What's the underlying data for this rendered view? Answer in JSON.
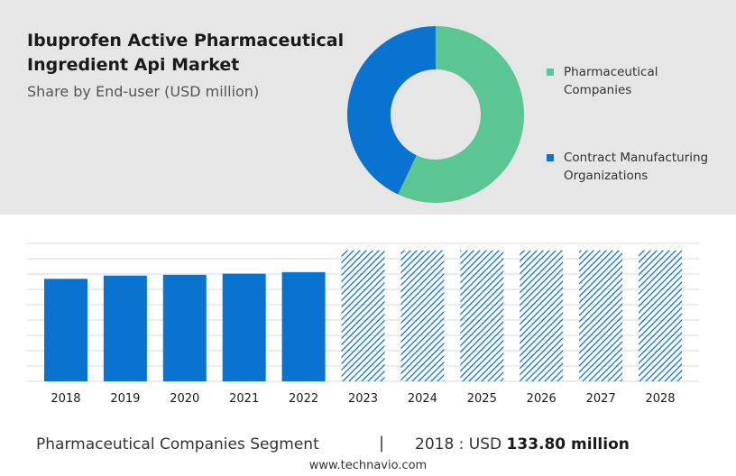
{
  "header": {
    "title": "Ibuprofen Active Pharmaceutical Ingredient Api Market",
    "subtitle": "Share by End-user (USD million)"
  },
  "chart_data": [
    {
      "type": "pie",
      "variant": "donut",
      "segments": [
        {
          "name": "Pharmaceutical Companies",
          "value": 57,
          "color": "#5cc594"
        },
        {
          "name": "Contract Manufacturing Organizations",
          "value": 43,
          "color": "#0a73d0"
        }
      ],
      "legend_position": "right"
    },
    {
      "type": "bar",
      "categories": [
        "2018",
        "2019",
        "2020",
        "2021",
        "2022",
        "2023",
        "2024",
        "2025",
        "2026",
        "2027",
        "2028"
      ],
      "values": [
        133.8,
        138,
        139,
        140.5,
        142.5,
        null,
        null,
        null,
        null,
        null,
        null
      ],
      "forecast_categories": [
        "2023",
        "2024",
        "2025",
        "2026",
        "2027",
        "2028"
      ],
      "forecast_height": 171,
      "ylim": [
        0,
        180
      ],
      "grid": true,
      "bar_color": "#0a73d0",
      "forecast_color": "#0a73d0"
    }
  ],
  "footer": {
    "segment_label": "Pharmaceutical Companies Segment",
    "separator": "|",
    "value_prefix": "2018 : USD",
    "value_bold": "133.80 million"
  },
  "source": "www.technavio.com"
}
